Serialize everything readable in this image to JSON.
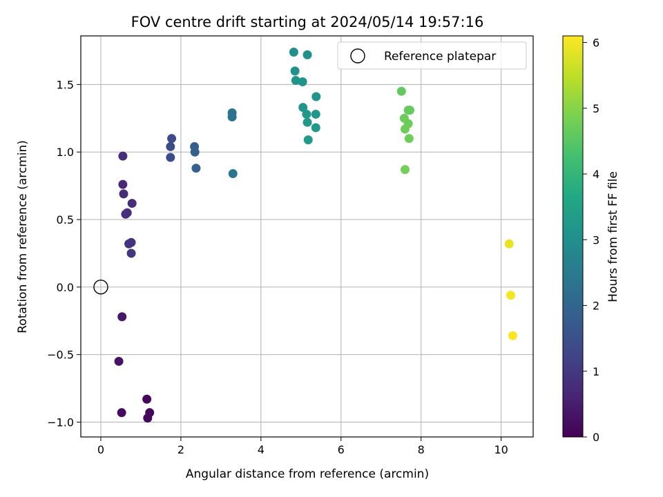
{
  "chart_data": {
    "type": "scatter",
    "title": "FOV centre drift starting at 2024/05/14 19:57:16",
    "xlabel": "Angular distance from reference (arcmin)",
    "ylabel": "Rotation from reference (arcmin)",
    "xlim": [
      -0.5,
      10.8
    ],
    "ylim": [
      -1.11,
      1.86
    ],
    "xticks": [
      0,
      2,
      4,
      6,
      8,
      10
    ],
    "xtick_labels": [
      "0",
      "2",
      "4",
      "6",
      "8",
      "10"
    ],
    "yticks": [
      -1.0,
      -0.5,
      0.0,
      0.5,
      1.0,
      1.5
    ],
    "ytick_labels": [
      "−1.0",
      "−0.5",
      "0.0",
      "0.5",
      "1.0",
      "1.5"
    ],
    "grid": true,
    "legend": {
      "position": "top-right",
      "entries": [
        "Reference platepar"
      ]
    },
    "reference_point": {
      "x": 0,
      "y": 0
    },
    "colorbar": {
      "label": "Hours from first FF file",
      "range": [
        0,
        6.1
      ],
      "ticks": [
        0,
        1,
        2,
        3,
        4,
        5,
        6
      ],
      "tick_labels": [
        "0",
        "1",
        "2",
        "3",
        "4",
        "5",
        "6"
      ],
      "colormap": "viridis"
    },
    "points": [
      {
        "x": 1.15,
        "y": -0.83,
        "c": 0.1
      },
      {
        "x": 1.17,
        "y": -0.97,
        "c": 0.1
      },
      {
        "x": 1.22,
        "y": -0.93,
        "c": 0.1
      },
      {
        "x": 0.52,
        "y": -0.93,
        "c": 0.2
      },
      {
        "x": 0.45,
        "y": -0.55,
        "c": 0.3
      },
      {
        "x": 0.53,
        "y": -0.22,
        "c": 0.4
      },
      {
        "x": 0.55,
        "y": 0.97,
        "c": 0.8
      },
      {
        "x": 0.55,
        "y": 0.76,
        "c": 0.7
      },
      {
        "x": 0.57,
        "y": 0.69,
        "c": 0.75
      },
      {
        "x": 0.78,
        "y": 0.62,
        "c": 0.8
      },
      {
        "x": 0.62,
        "y": 0.54,
        "c": 0.8
      },
      {
        "x": 0.66,
        "y": 0.55,
        "c": 0.85
      },
      {
        "x": 0.7,
        "y": 0.32,
        "c": 0.9
      },
      {
        "x": 0.76,
        "y": 0.33,
        "c": 0.9
      },
      {
        "x": 0.76,
        "y": 0.25,
        "c": 0.95
      },
      {
        "x": 1.77,
        "y": 1.1,
        "c": 1.4
      },
      {
        "x": 1.74,
        "y": 1.04,
        "c": 1.4
      },
      {
        "x": 1.74,
        "y": 0.96,
        "c": 1.45
      },
      {
        "x": 2.34,
        "y": 1.04,
        "c": 1.8
      },
      {
        "x": 2.35,
        "y": 1.0,
        "c": 1.85
      },
      {
        "x": 2.38,
        "y": 0.88,
        "c": 1.9
      },
      {
        "x": 3.28,
        "y": 1.29,
        "c": 2.3
      },
      {
        "x": 3.28,
        "y": 1.26,
        "c": 2.35
      },
      {
        "x": 3.3,
        "y": 0.84,
        "c": 2.4
      },
      {
        "x": 4.82,
        "y": 1.74,
        "c": 3.0
      },
      {
        "x": 5.16,
        "y": 1.72,
        "c": 3.05
      },
      {
        "x": 4.85,
        "y": 1.6,
        "c": 3.05
      },
      {
        "x": 4.87,
        "y": 1.53,
        "c": 3.1
      },
      {
        "x": 5.04,
        "y": 1.52,
        "c": 3.1
      },
      {
        "x": 5.38,
        "y": 1.41,
        "c": 3.15
      },
      {
        "x": 5.05,
        "y": 1.33,
        "c": 3.15
      },
      {
        "x": 5.14,
        "y": 1.28,
        "c": 3.2
      },
      {
        "x": 5.37,
        "y": 1.28,
        "c": 3.2
      },
      {
        "x": 5.16,
        "y": 1.22,
        "c": 3.25
      },
      {
        "x": 5.37,
        "y": 1.18,
        "c": 3.25
      },
      {
        "x": 5.18,
        "y": 1.09,
        "c": 3.3
      },
      {
        "x": 7.51,
        "y": 1.45,
        "c": 4.6
      },
      {
        "x": 7.68,
        "y": 1.31,
        "c": 4.65
      },
      {
        "x": 7.72,
        "y": 1.31,
        "c": 4.65
      },
      {
        "x": 7.58,
        "y": 1.25,
        "c": 4.7
      },
      {
        "x": 7.68,
        "y": 1.21,
        "c": 4.7
      },
      {
        "x": 7.6,
        "y": 1.17,
        "c": 4.75
      },
      {
        "x": 7.7,
        "y": 1.1,
        "c": 4.75
      },
      {
        "x": 7.6,
        "y": 0.87,
        "c": 4.8
      },
      {
        "x": 10.2,
        "y": 0.32,
        "c": 5.9
      },
      {
        "x": 10.24,
        "y": -0.06,
        "c": 6.0
      },
      {
        "x": 10.29,
        "y": -0.36,
        "c": 6.05
      }
    ]
  }
}
